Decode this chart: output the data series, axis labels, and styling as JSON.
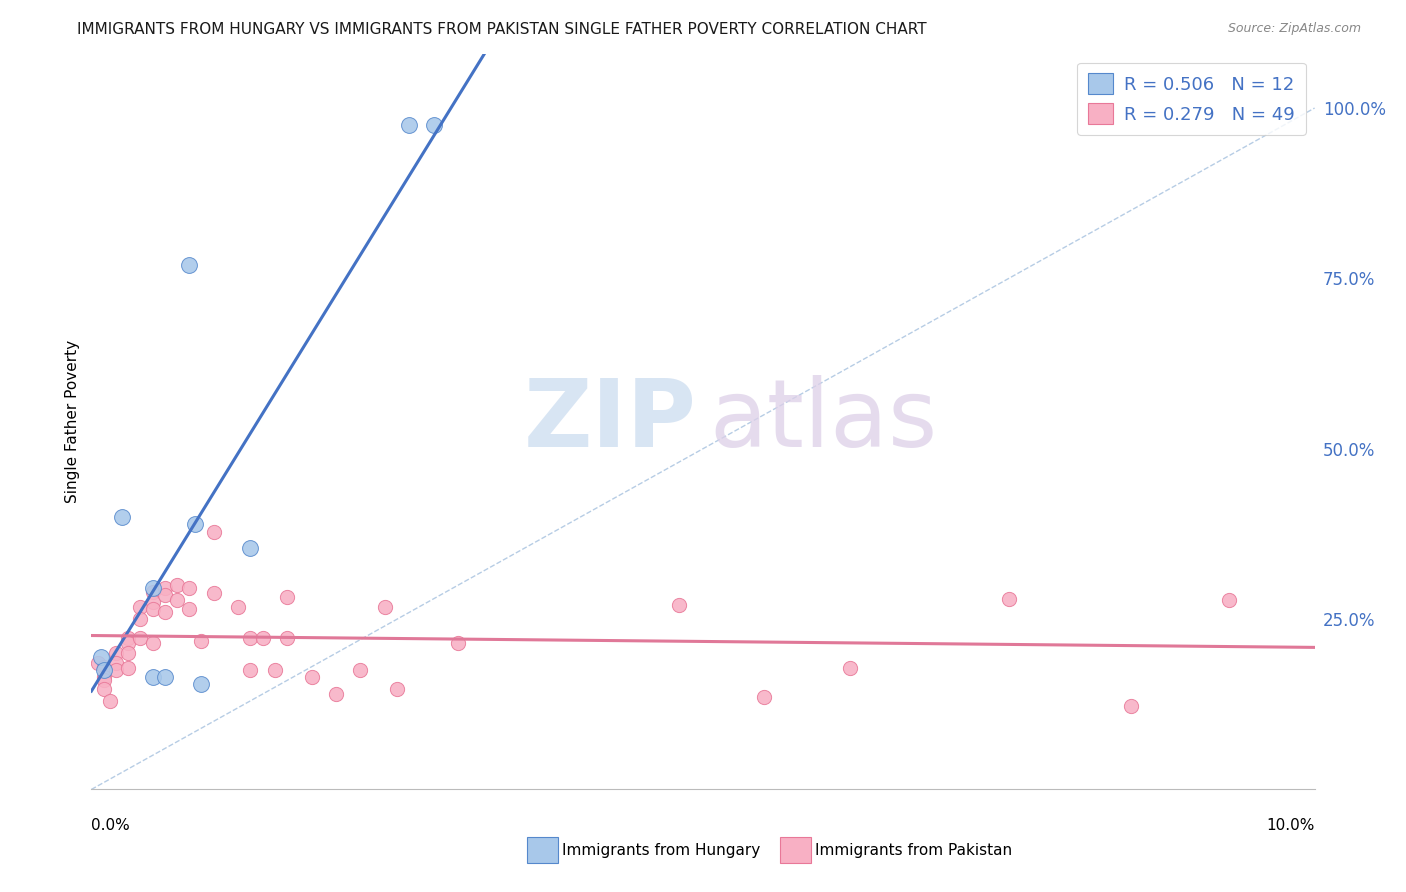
{
  "title": "IMMIGRANTS FROM HUNGARY VS IMMIGRANTS FROM PAKISTAN SINGLE FATHER POVERTY CORRELATION CHART",
  "source": "Source: ZipAtlas.com",
  "ylabel": "Single Father Poverty",
  "right_ytick_labels": [
    "100.0%",
    "75.0%",
    "50.0%",
    "25.0%"
  ],
  "right_ytick_vals": [
    1.0,
    0.75,
    0.5,
    0.25
  ],
  "xmin": 0.0,
  "xmax": 0.1,
  "ymin": 0.0,
  "ymax": 1.08,
  "hungary_R": 0.506,
  "hungary_N": 12,
  "pakistan_R": 0.279,
  "pakistan_N": 49,
  "hungary_marker_face": "#a8c8ea",
  "hungary_marker_edge": "#5588cc",
  "pakistan_marker_face": "#f8b0c4",
  "pakistan_marker_edge": "#e87898",
  "hungary_line_color": "#4472c4",
  "pakistan_line_color": "#e07898",
  "diag_line_color": "#aac4e0",
  "grid_color": "#e4e4e4",
  "title_color": "#1a1a1a",
  "source_color": "#888888",
  "right_axis_color": "#4472c4",
  "legend_R_color": "#4472c4",
  "hungary_legend_label": "Immigrants from Hungary",
  "pakistan_legend_label": "Immigrants from Pakistan",
  "hungary_x": [
    0.0008,
    0.001,
    0.0025,
    0.005,
    0.005,
    0.006,
    0.008,
    0.0085,
    0.009,
    0.013,
    0.026,
    0.028
  ],
  "hungary_y": [
    0.195,
    0.175,
    0.4,
    0.295,
    0.165,
    0.165,
    0.77,
    0.39,
    0.155,
    0.355,
    0.975,
    0.975
  ],
  "pakistan_x": [
    0.0005,
    0.001,
    0.001,
    0.001,
    0.001,
    0.0015,
    0.002,
    0.002,
    0.002,
    0.003,
    0.003,
    0.003,
    0.003,
    0.004,
    0.004,
    0.004,
    0.005,
    0.005,
    0.005,
    0.005,
    0.006,
    0.006,
    0.006,
    0.007,
    0.007,
    0.008,
    0.008,
    0.009,
    0.01,
    0.01,
    0.012,
    0.013,
    0.013,
    0.014,
    0.015,
    0.016,
    0.016,
    0.018,
    0.02,
    0.022,
    0.024,
    0.025,
    0.03,
    0.048,
    0.055,
    0.062,
    0.075,
    0.085,
    0.093
  ],
  "pakistan_y": [
    0.185,
    0.18,
    0.165,
    0.16,
    0.148,
    0.13,
    0.2,
    0.185,
    0.175,
    0.222,
    0.215,
    0.2,
    0.178,
    0.268,
    0.25,
    0.222,
    0.29,
    0.275,
    0.265,
    0.215,
    0.295,
    0.285,
    0.26,
    0.3,
    0.278,
    0.295,
    0.265,
    0.218,
    0.378,
    0.288,
    0.268,
    0.222,
    0.175,
    0.222,
    0.175,
    0.282,
    0.222,
    0.165,
    0.14,
    0.175,
    0.268,
    0.148,
    0.215,
    0.27,
    0.135,
    0.178,
    0.28,
    0.122,
    0.278
  ]
}
